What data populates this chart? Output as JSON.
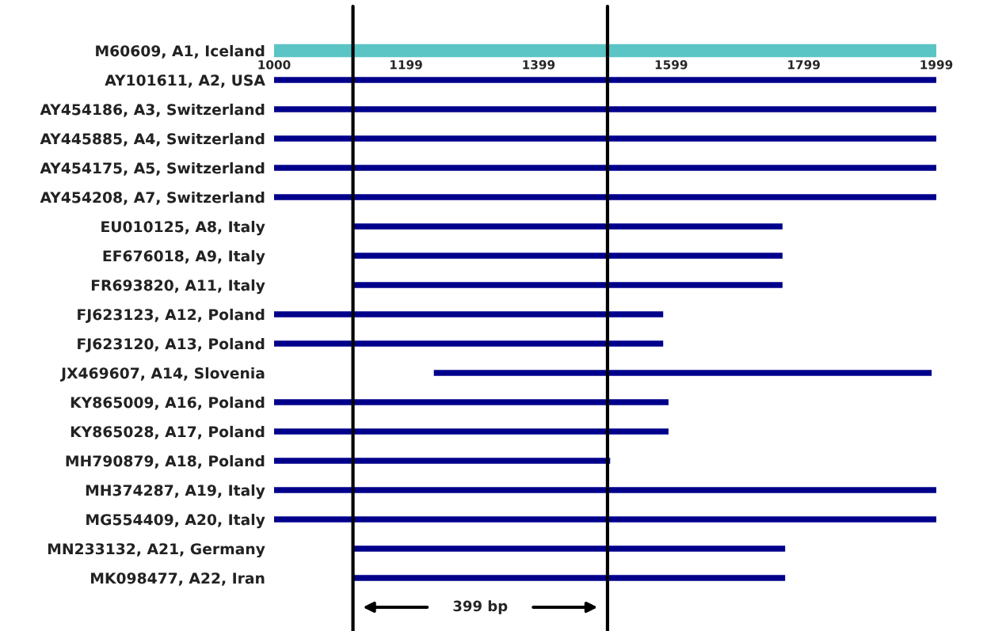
{
  "chart_data": {
    "type": "bar",
    "orientation": "horizontal",
    "categories": [
      "M60609, A1, Iceland",
      "AY101611, A2, USA",
      "AY454186, A3, Switzerland",
      "AY445885, A4, Switzerland",
      "AY454175, A5, Switzerland",
      "AY454208, A7, Switzerland",
      "EU010125, A8, Italy",
      "EF676018, A9, Italy",
      "FR693820, A11, Italy",
      "FJ623123, A12, Poland",
      "FJ623120, A13, Poland",
      "JX469607, A14, Slovenia",
      "KY865009, A16, Poland",
      "KY865028, A17, Poland",
      "MH790879, A18, Poland",
      "MH374287, A19, Italy",
      "MG554409, A20, Italy",
      "MN233132, A21, Germany",
      "MK098477, A22, Iran"
    ],
    "base": [
      1000,
      1000,
      1000,
      1000,
      1000,
      1000,
      1119,
      1119,
      1119,
      1000,
      1000,
      1241,
      1000,
      1000,
      1000,
      1000,
      1000,
      1119,
      1119
    ],
    "values": [
      999,
      999,
      999,
      999,
      999,
      999,
      648,
      648,
      648,
      587,
      587,
      751,
      595,
      595,
      507,
      999,
      999,
      652,
      652
    ],
    "colors": [
      "#5bc5c5",
      "#00008b",
      "#00008b",
      "#00008b",
      "#00008b",
      "#00008b",
      "#00008b",
      "#00008b",
      "#00008b",
      "#00008b",
      "#00008b",
      "#00008b",
      "#00008b",
      "#00008b",
      "#00008b",
      "#00008b",
      "#00008b",
      "#00008b",
      "#00008b"
    ],
    "xlim": [
      1000,
      1999
    ],
    "xticks": [
      1000,
      1199,
      1399,
      1599,
      1799,
      1999
    ],
    "ref_lines": [
      {
        "axis": "x",
        "value": 1119,
        "color": "#000000"
      },
      {
        "axis": "x",
        "value": 1503,
        "color": "#000000"
      }
    ],
    "annotations": [
      "399 bp"
    ]
  }
}
